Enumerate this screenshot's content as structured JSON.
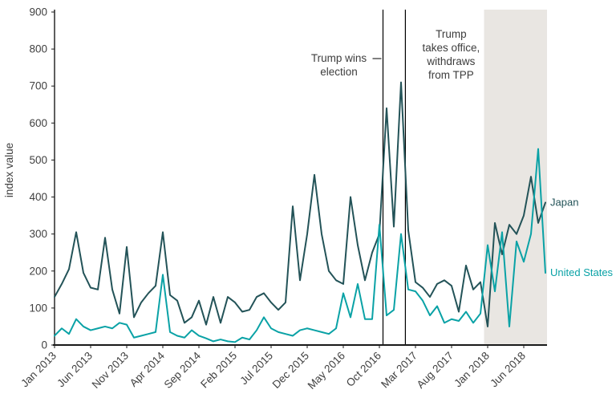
{
  "figure": {
    "ylabel": "index value"
  },
  "chart_data": {
    "type": "line",
    "title": "",
    "ylabel": "index value",
    "xlabel": "",
    "ylim": [
      0,
      900
    ],
    "yticks": [
      0,
      100,
      200,
      300,
      400,
      500,
      600,
      700,
      800,
      900
    ],
    "xtick_every": 5,
    "grid": false,
    "legend_position": "right-end-labels",
    "x": [
      "Jan 2013",
      "Feb 2013",
      "Mar 2013",
      "Apr 2013",
      "May 2013",
      "Jun 2013",
      "Jul 2013",
      "Aug 2013",
      "Sep 2013",
      "Oct 2013",
      "Nov 2013",
      "Dec 2013",
      "Jan 2014",
      "Feb 2014",
      "Mar 2014",
      "Apr 2014",
      "May 2014",
      "Jun 2014",
      "Jul 2014",
      "Aug 2014",
      "Sep 2014",
      "Oct 2014",
      "Nov 2014",
      "Dec 2014",
      "Jan 2015",
      "Feb 2015",
      "Mar 2015",
      "Apr 2015",
      "May 2015",
      "Jun 2015",
      "Jul 2015",
      "Aug 2015",
      "Sep 2015",
      "Oct 2015",
      "Nov 2015",
      "Dec 2015",
      "Jan 2016",
      "Feb 2016",
      "Mar 2016",
      "Apr 2016",
      "May 2016",
      "Jun 2016",
      "Jul 2016",
      "Aug 2016",
      "Sep 2016",
      "Oct 2016",
      "Nov 2016",
      "Dec 2016",
      "Jan 2017",
      "Feb 2017",
      "Mar 2017",
      "Apr 2017",
      "May 2017",
      "Jun 2017",
      "Jul 2017",
      "Aug 2017",
      "Sep 2017",
      "Oct 2017",
      "Nov 2017",
      "Dec 2017",
      "Jan 2018",
      "Feb 2018",
      "Mar 2018",
      "Apr 2018",
      "May 2018",
      "Jun 2018",
      "Jul 2018",
      "Aug 2018",
      "Sep 2018"
    ],
    "series": [
      {
        "name": "Japan",
        "color": "#235358",
        "values": [
          130,
          165,
          205,
          305,
          195,
          155,
          150,
          290,
          150,
          85,
          265,
          75,
          115,
          140,
          160,
          305,
          135,
          120,
          60,
          75,
          120,
          55,
          130,
          60,
          130,
          115,
          90,
          95,
          130,
          140,
          115,
          95,
          115,
          375,
          175,
          300,
          460,
          300,
          200,
          175,
          165,
          400,
          270,
          175,
          250,
          300,
          640,
          320,
          710,
          310,
          170,
          155,
          130,
          165,
          175,
          160,
          90,
          215,
          150,
          170,
          50,
          330,
          245,
          325,
          300,
          350,
          455,
          330,
          385
        ]
      },
      {
        "name": "United States",
        "color": "#0aa2a6",
        "values": [
          25,
          45,
          30,
          70,
          50,
          40,
          45,
          50,
          45,
          60,
          55,
          20,
          25,
          30,
          35,
          190,
          35,
          25,
          20,
          40,
          25,
          18,
          10,
          15,
          10,
          8,
          20,
          15,
          40,
          75,
          45,
          35,
          30,
          25,
          40,
          45,
          40,
          35,
          30,
          45,
          140,
          75,
          165,
          70,
          70,
          325,
          80,
          95,
          300,
          150,
          145,
          120,
          80,
          105,
          60,
          70,
          65,
          90,
          60,
          85,
          270,
          145,
          305,
          50,
          280,
          225,
          300,
          530,
          195
        ]
      }
    ],
    "shaded_region": {
      "start": "Jan 2018",
      "end": "Sep 2018",
      "color": "#e9e6e2"
    },
    "event_lines": [
      {
        "name": "election-line",
        "label": "Trump wins election",
        "label_lines": [
          "Trump wins",
          "election"
        ],
        "index": 45.5,
        "label_offset_x": -55,
        "label_top_y": 77,
        "connector_y": 73
      },
      {
        "name": "inauguration-line",
        "label": "Trump takes office, withdraws from TPP",
        "label_lines": [
          "Trump",
          "takes office,",
          "withdraws",
          "from TPP"
        ],
        "index": 48.6,
        "label_offset_x": 57,
        "label_top_y": 47
      }
    ],
    "colors": {
      "axis": "#1a1a1a",
      "text": "#414141",
      "annotation_text": "#3d3d3d",
      "event_line": "#000000"
    }
  }
}
